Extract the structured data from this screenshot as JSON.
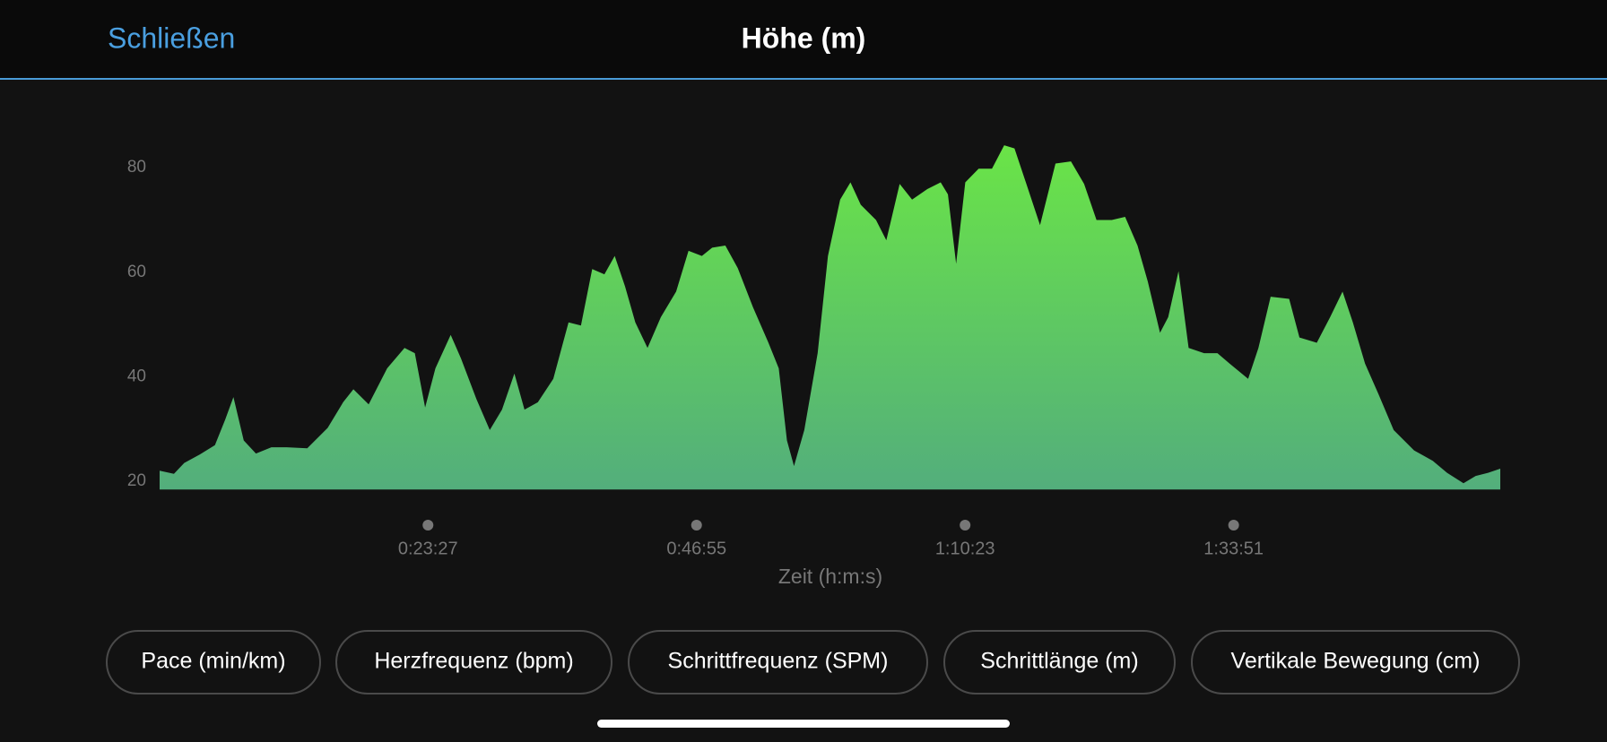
{
  "header": {
    "close": "Schließen",
    "title": "Höhe (m)"
  },
  "chart_data": {
    "type": "area",
    "color": "#6ae447",
    "x": [
      0,
      75,
      129,
      210,
      290,
      344,
      387,
      441,
      505,
      586,
      666,
      774,
      881,
      962,
      1016,
      1096,
      1193,
      1284,
      1338,
      1392,
      1446,
      1526,
      1580,
      1661,
      1731,
      1795,
      1860,
      1913,
      1983,
      2064,
      2144,
      2209,
      2268,
      2332,
      2386,
      2440,
      2494,
      2558,
      2628,
      2708,
      2773,
      2843,
      2897,
      2966,
      3031,
      3111,
      3192,
      3246,
      3289,
      3326,
      3380,
      3450,
      3504,
      3568,
      3622,
      3676,
      3756,
      3810,
      3880,
      3945,
      4025,
      4095,
      4133,
      4176,
      4224,
      4294,
      4364,
      4428,
      4482,
      4536,
      4616,
      4697,
      4778,
      4847,
      4912,
      4992,
      5062,
      5127,
      5181,
      5245,
      5288,
      5342,
      5395,
      5476,
      5546,
      5610,
      5707,
      5761,
      5825,
      5922,
      5976,
      6067,
      6137,
      6202,
      6256,
      6320,
      6390,
      6470,
      6577,
      6675,
      6750,
      6836,
      6900,
      6965,
      7029
    ],
    "values": [
      22,
      21.4,
      23.5,
      25.1,
      26.9,
      31.8,
      36.1,
      27.8,
      25.3,
      26.5,
      26.5,
      26.3,
      30.2,
      35.1,
      37.6,
      34.7,
      41.6,
      45.5,
      44.5,
      34.1,
      41.6,
      48,
      43.5,
      35.7,
      29.8,
      33.7,
      40.6,
      33.7,
      35.1,
      39.6,
      50.4,
      49.8,
      60.6,
      59.6,
      63.1,
      57.3,
      50.4,
      45.5,
      51.4,
      56.3,
      64.1,
      63.1,
      64.7,
      65.1,
      60.8,
      53.3,
      46.5,
      41.6,
      27.8,
      22.9,
      29.8,
      44.5,
      63.1,
      73.9,
      77.2,
      72.9,
      70,
      66.1,
      76.9,
      73.9,
      75.9,
      77.2,
      74.9,
      61.6,
      77.2,
      79.8,
      79.8,
      84.3,
      83.7,
      77.8,
      69,
      80.8,
      81.2,
      76.9,
      70,
      70,
      70.6,
      65.1,
      58.2,
      48.4,
      51.4,
      60.2,
      45.5,
      44.5,
      44.5,
      42.5,
      39.6,
      45.5,
      55.3,
      54.9,
      47.5,
      46.5,
      51.4,
      56.3,
      50.4,
      42.5,
      36.7,
      29.8,
      25.9,
      23.9,
      21.6,
      19.6,
      21,
      21.6,
      22.4
    ],
    "xlim": [
      0,
      7029
    ],
    "xticks": [
      {
        "value": 1407,
        "label": "0:23:27"
      },
      {
        "value": 2815,
        "label": "0:46:55"
      },
      {
        "value": 4223,
        "label": "1:10:23"
      },
      {
        "value": 5631,
        "label": "1:33:51"
      }
    ],
    "ylim": [
      18.4,
      88
    ],
    "yticks": [
      20,
      40,
      60,
      80
    ],
    "xlabel": "Zeit (h:m:s)",
    "grid": false
  },
  "buttons": [
    "Pace (min/km)",
    "Herzfrequenz (bpm)",
    "Schrittfrequenz (SPM)",
    "Schrittlänge (m)",
    "Vertikale Bewegung (cm)"
  ]
}
